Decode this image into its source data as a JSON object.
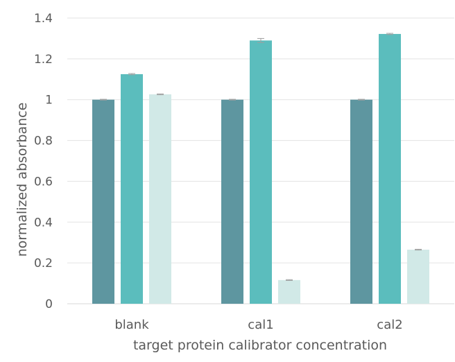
{
  "chart_data": {
    "type": "bar",
    "title": "",
    "xlabel": "target protein calibrator concentration",
    "ylabel": "normalized absorbance",
    "categories": [
      "blank",
      "cal1",
      "cal2"
    ],
    "series": [
      {
        "values": [
          1.0,
          1.0,
          1.0
        ],
        "errors": [
          0.002,
          0.002,
          0.002
        ],
        "color": "#5e96a0"
      },
      {
        "values": [
          1.125,
          1.29,
          1.322
        ],
        "errors": [
          0.003,
          0.01,
          0.003
        ],
        "color": "#5bbdbd"
      },
      {
        "values": [
          1.026,
          0.116,
          0.265
        ],
        "errors": [
          0.002,
          0.002,
          0.002
        ],
        "color": "#d1e9e7"
      }
    ],
    "ylim": [
      0,
      1.4
    ],
    "yticks": [
      "0",
      "0.2",
      "0.4",
      "0.6",
      "0.8",
      "1",
      "1.2",
      "1.4"
    ],
    "grid": true,
    "legend": "none",
    "gridline_color": "#e3e3e3",
    "errorbar_color": "#a0a0a0"
  }
}
